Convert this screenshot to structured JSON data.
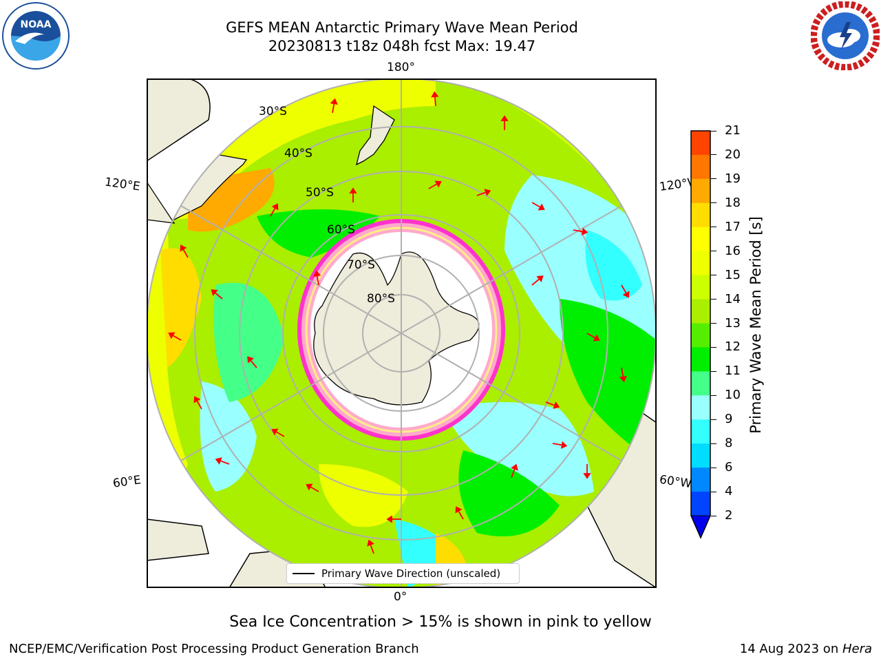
{
  "title": {
    "line1": "GEFS MEAN Antarctic Primary Wave Mean Period",
    "line2": "20230813 t18z 048h fcst   Max: 19.47"
  },
  "logos": {
    "left": "noaa-logo",
    "right": "nws-logo",
    "left_text": "NOAA"
  },
  "map": {
    "longitude_labels": {
      "top": "180°",
      "bottom": "0°",
      "upper_left": "120°E",
      "upper_right": "120°W",
      "lower_left": "60°E",
      "lower_right": "60°W"
    },
    "latitude_labels": [
      "30°S",
      "40°S",
      "50°S",
      "60°S",
      "70°S",
      "80°S"
    ],
    "legend_label": "Primary Wave Direction (unscaled)",
    "land_color": "#eeecda",
    "ice_colors": [
      "#ff33cc",
      "#ffaacc",
      "#ffee88"
    ],
    "arrow_color": "#ff0000"
  },
  "colorbar": {
    "label": "Primary Wave Mean Period [s]",
    "ticks": [
      "2",
      "4",
      "6",
      "8",
      "9",
      "10",
      "11",
      "12",
      "13",
      "14",
      "15",
      "16",
      "17",
      "18",
      "19",
      "20",
      "21"
    ],
    "colors": [
      "#0044ff",
      "#0088ff",
      "#00ddff",
      "#33ffff",
      "#99ffff",
      "#44ff88",
      "#00ee00",
      "#55ee00",
      "#aaee00",
      "#ccff00",
      "#eeff00",
      "#ffff00",
      "#ffdd00",
      "#ffaa00",
      "#ff7700",
      "#ff4400",
      "#ff0000"
    ],
    "extend_color": "#0000ee"
  },
  "note": "Sea Ice Concentration > 15% is shown in pink to yellow",
  "footer": {
    "left": "NCEP/EMC/Verification Post Processing Product Generation Branch",
    "date": "14 Aug 2023 on ",
    "machine": "Hera"
  }
}
